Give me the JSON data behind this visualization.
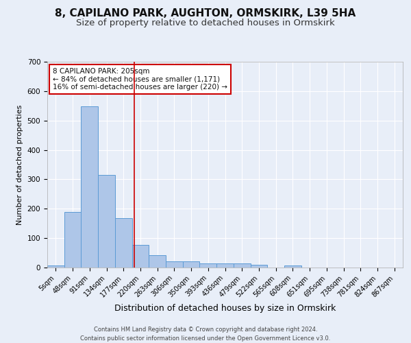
{
  "title": "8, CAPILANO PARK, AUGHTON, ORMSKIRK, L39 5HA",
  "subtitle": "Size of property relative to detached houses in Ormskirk",
  "xlabel": "Distribution of detached houses by size in Ormskirk",
  "ylabel": "Number of detached properties",
  "bin_labels": [
    "5sqm",
    "48sqm",
    "91sqm",
    "134sqm",
    "177sqm",
    "220sqm",
    "263sqm",
    "306sqm",
    "350sqm",
    "393sqm",
    "436sqm",
    "479sqm",
    "522sqm",
    "565sqm",
    "608sqm",
    "651sqm",
    "695sqm",
    "738sqm",
    "781sqm",
    "824sqm",
    "867sqm"
  ],
  "bar_heights": [
    8,
    188,
    548,
    315,
    168,
    77,
    42,
    20,
    20,
    13,
    14,
    15,
    9,
    0,
    6,
    0,
    0,
    0,
    0,
    0,
    0
  ],
  "bar_color": "#aec6e8",
  "bar_edge_color": "#5b9bd5",
  "bg_color": "#e8eef8",
  "plot_bg_color": "#e8eef8",
  "grid_color": "#ffffff",
  "ylim": [
    0,
    700
  ],
  "yticks": [
    0,
    100,
    200,
    300,
    400,
    500,
    600,
    700
  ],
  "annotation_text": "8 CAPILANO PARK: 205sqm\n← 84% of detached houses are smaller (1,171)\n16% of semi-detached houses are larger (220) →",
  "footer": "Contains HM Land Registry data © Crown copyright and database right 2024.\nContains public sector information licensed under the Open Government Licence v3.0.",
  "title_fontsize": 11,
  "subtitle_fontsize": 9.5,
  "ylabel_fontsize": 8,
  "xlabel_fontsize": 9,
  "annot_fontsize": 7.5,
  "tick_fontsize": 7,
  "footer_fontsize": 6,
  "red_line_color": "#cc0000",
  "annot_edge_color": "#cc0000"
}
